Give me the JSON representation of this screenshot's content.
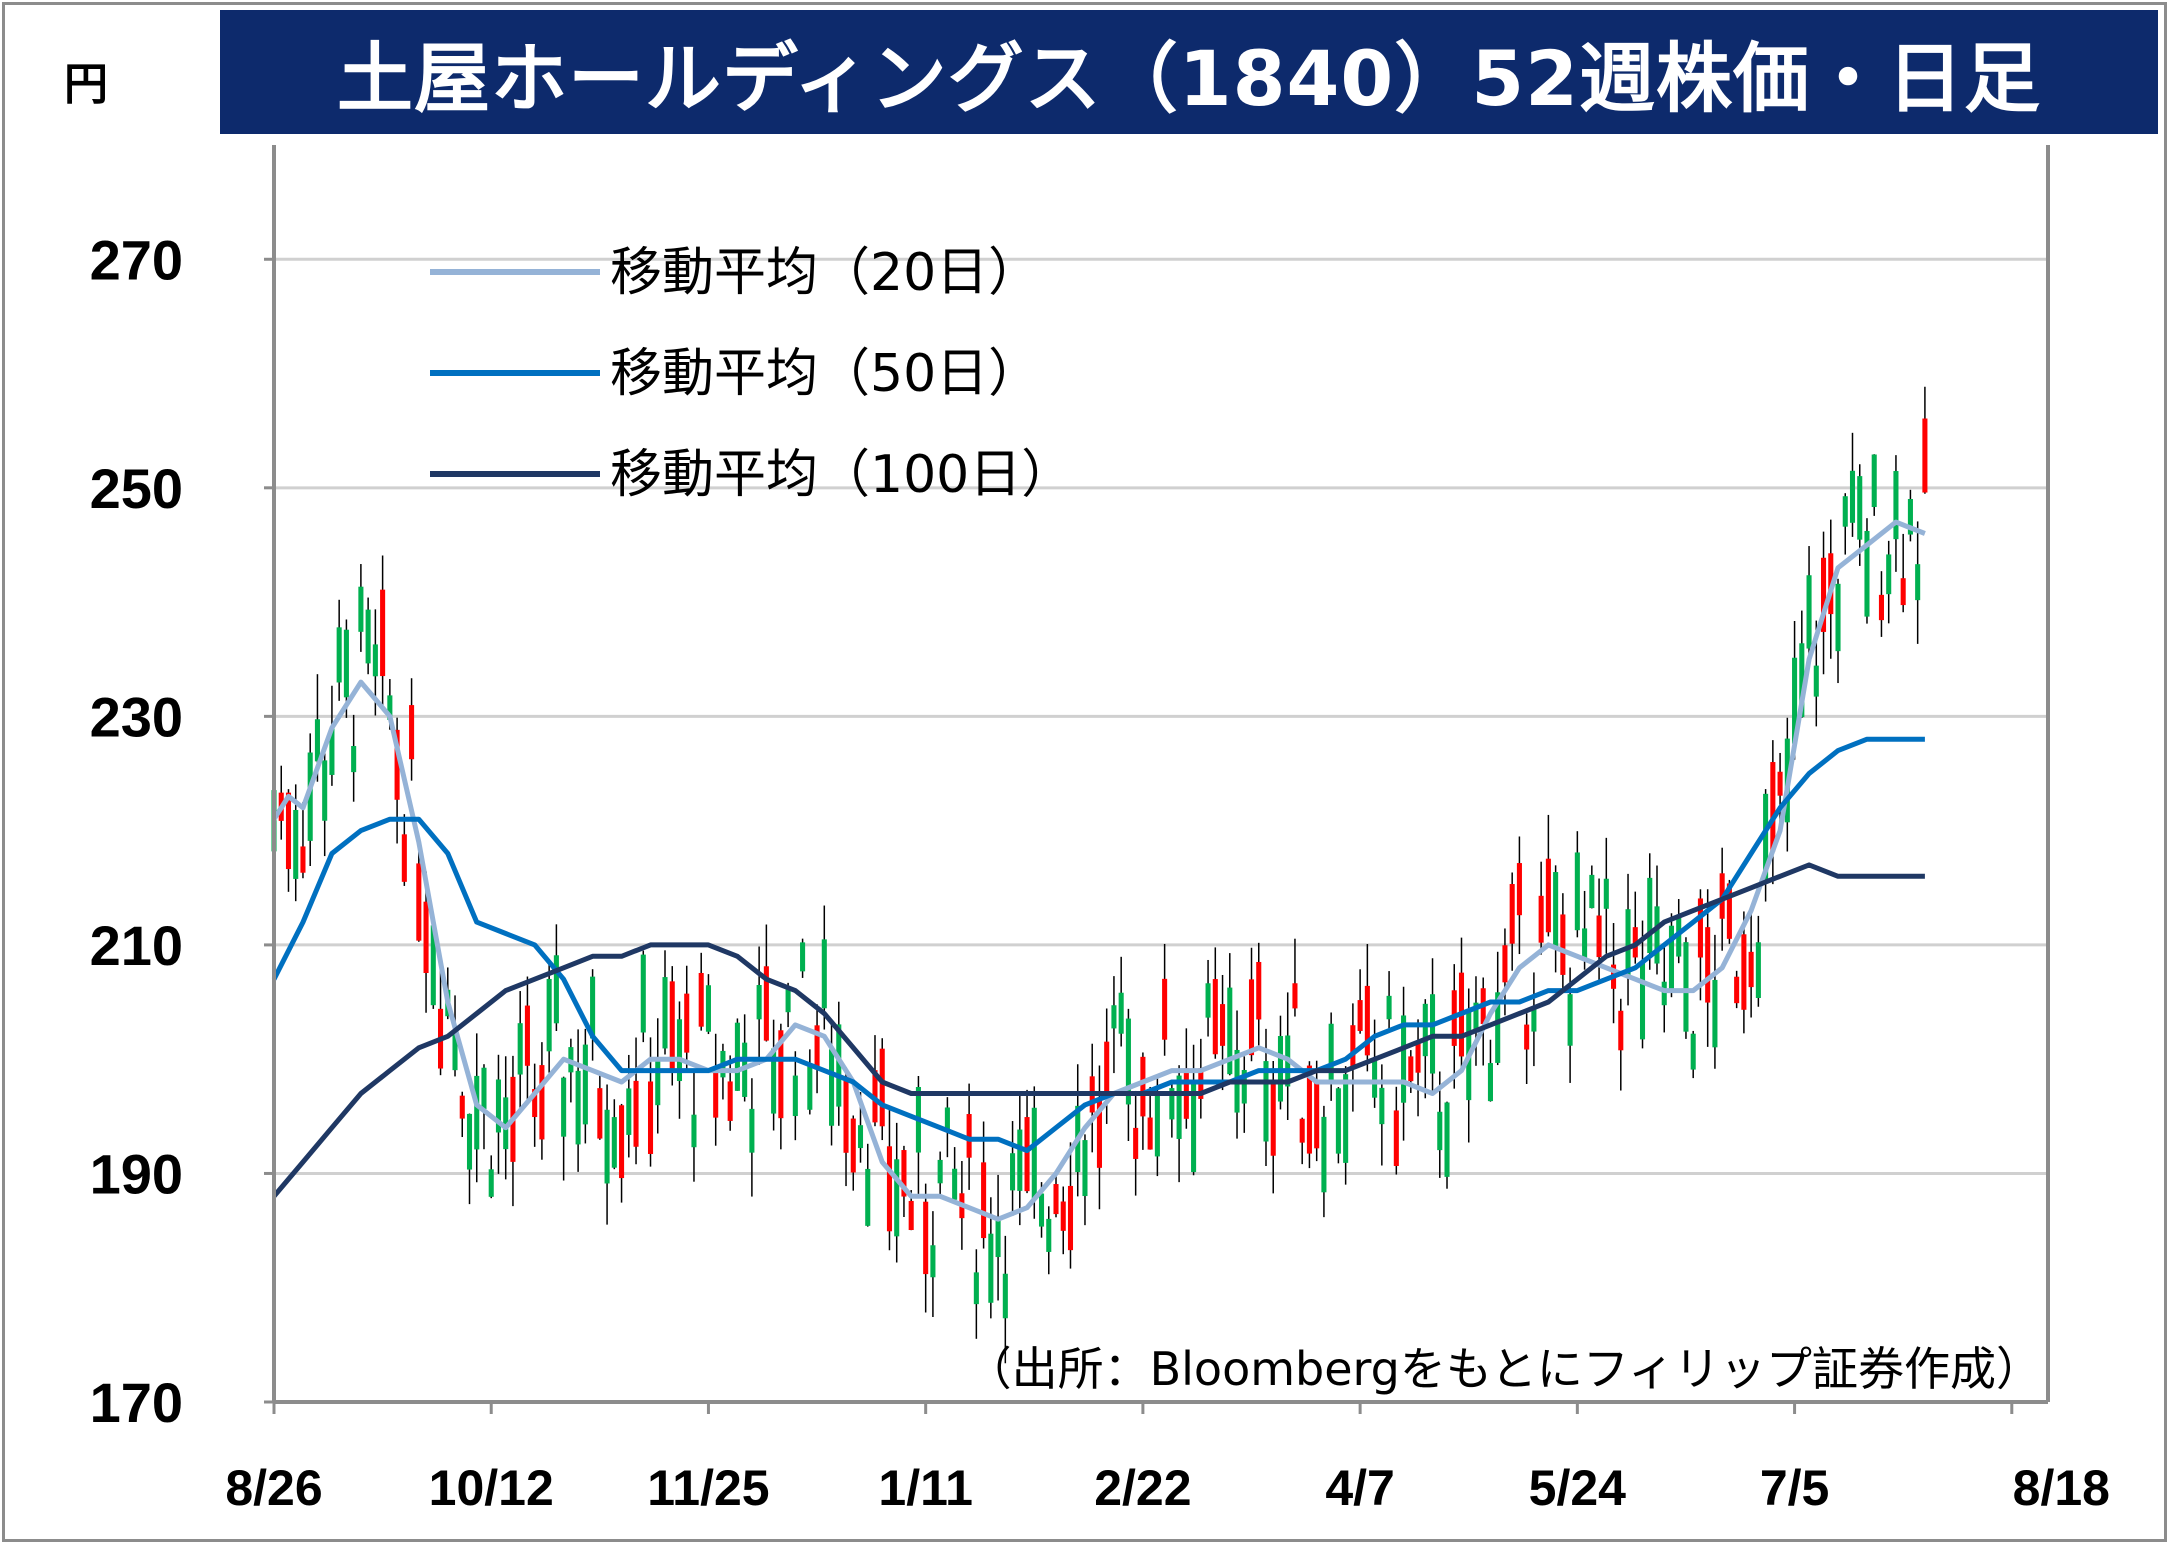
{
  "title": "土屋ホールディングス（1840）52週株価・日足",
  "unit": "円",
  "source": "（出所：Bloombergをもとにフィリップ証券作成）",
  "chart_data": {
    "type": "line",
    "ylim": [
      170,
      280
    ],
    "yticks": [
      170,
      190,
      210,
      230,
      250,
      270
    ],
    "ytick_labels": [
      "170",
      "190",
      "210",
      "230",
      "250",
      "270"
    ],
    "xlim": [
      0,
      245
    ],
    "xtick_positions": [
      0,
      30,
      60,
      90,
      120,
      150,
      180,
      210,
      240
    ],
    "xtick_labels": [
      "8/26",
      "10/12",
      "11/25",
      "1/11",
      "2/22",
      "4/7",
      "5/24",
      "7/5",
      "8/18"
    ],
    "grid": true,
    "legend": "top-left",
    "up_color": "#ff0000",
    "down_color": "#00b050",
    "series": [
      {
        "name": "移動平均（20日）",
        "color": "#95b3d7",
        "points": [
          [
            0,
            221
          ],
          [
            2,
            223
          ],
          [
            4,
            222
          ],
          [
            8,
            229
          ],
          [
            12,
            233
          ],
          [
            16,
            230
          ],
          [
            20,
            219
          ],
          [
            24,
            205
          ],
          [
            28,
            196
          ],
          [
            32,
            194
          ],
          [
            36,
            197
          ],
          [
            40,
            200
          ],
          [
            44,
            199
          ],
          [
            48,
            198
          ],
          [
            52,
            200
          ],
          [
            56,
            200
          ],
          [
            60,
            199
          ],
          [
            64,
            199
          ],
          [
            68,
            200
          ],
          [
            72,
            203
          ],
          [
            76,
            202
          ],
          [
            80,
            198
          ],
          [
            84,
            191
          ],
          [
            88,
            188
          ],
          [
            92,
            188
          ],
          [
            96,
            187
          ],
          [
            100,
            186
          ],
          [
            104,
            187
          ],
          [
            108,
            190
          ],
          [
            112,
            194
          ],
          [
            116,
            197
          ],
          [
            120,
            198
          ],
          [
            124,
            199
          ],
          [
            128,
            199
          ],
          [
            132,
            200
          ],
          [
            136,
            201
          ],
          [
            140,
            200
          ],
          [
            144,
            198
          ],
          [
            148,
            198
          ],
          [
            152,
            198
          ],
          [
            156,
            198
          ],
          [
            160,
            197
          ],
          [
            164,
            199
          ],
          [
            168,
            204
          ],
          [
            172,
            208
          ],
          [
            176,
            210
          ],
          [
            180,
            209
          ],
          [
            184,
            208
          ],
          [
            188,
            207
          ],
          [
            192,
            206
          ],
          [
            196,
            206
          ],
          [
            200,
            208
          ],
          [
            204,
            213
          ],
          [
            208,
            220
          ],
          [
            212,
            235
          ],
          [
            216,
            243
          ],
          [
            220,
            245
          ],
          [
            224,
            247
          ],
          [
            228,
            246
          ]
        ]
      },
      {
        "name": "移動平均（50日）",
        "color": "#0070c0",
        "points": [
          [
            0,
            207
          ],
          [
            4,
            212
          ],
          [
            8,
            218
          ],
          [
            12,
            220
          ],
          [
            16,
            221
          ],
          [
            20,
            221
          ],
          [
            24,
            218
          ],
          [
            28,
            212
          ],
          [
            32,
            211
          ],
          [
            36,
            210
          ],
          [
            40,
            207
          ],
          [
            44,
            202
          ],
          [
            48,
            199
          ],
          [
            52,
            199
          ],
          [
            56,
            199
          ],
          [
            60,
            199
          ],
          [
            64,
            200
          ],
          [
            68,
            200
          ],
          [
            72,
            200
          ],
          [
            76,
            199
          ],
          [
            80,
            198
          ],
          [
            84,
            196
          ],
          [
            88,
            195
          ],
          [
            92,
            194
          ],
          [
            96,
            193
          ],
          [
            100,
            193
          ],
          [
            104,
            192
          ],
          [
            108,
            194
          ],
          [
            112,
            196
          ],
          [
            116,
            197
          ],
          [
            120,
            197
          ],
          [
            124,
            198
          ],
          [
            128,
            198
          ],
          [
            132,
            198
          ],
          [
            136,
            199
          ],
          [
            140,
            199
          ],
          [
            144,
            199
          ],
          [
            148,
            200
          ],
          [
            152,
            202
          ],
          [
            156,
            203
          ],
          [
            160,
            203
          ],
          [
            164,
            204
          ],
          [
            168,
            205
          ],
          [
            172,
            205
          ],
          [
            176,
            206
          ],
          [
            180,
            206
          ],
          [
            184,
            207
          ],
          [
            188,
            208
          ],
          [
            192,
            210
          ],
          [
            196,
            212
          ],
          [
            200,
            214
          ],
          [
            204,
            218
          ],
          [
            208,
            222
          ],
          [
            212,
            225
          ],
          [
            216,
            227
          ],
          [
            220,
            228
          ],
          [
            224,
            228
          ],
          [
            228,
            228
          ]
        ]
      },
      {
        "name": "移動平均（100日）",
        "color": "#1f3864",
        "points": [
          [
            0,
            188
          ],
          [
            4,
            191
          ],
          [
            8,
            194
          ],
          [
            12,
            197
          ],
          [
            16,
            199
          ],
          [
            20,
            201
          ],
          [
            24,
            202
          ],
          [
            28,
            204
          ],
          [
            32,
            206
          ],
          [
            36,
            207
          ],
          [
            40,
            208
          ],
          [
            44,
            209
          ],
          [
            48,
            209
          ],
          [
            52,
            210
          ],
          [
            56,
            210
          ],
          [
            60,
            210
          ],
          [
            64,
            209
          ],
          [
            68,
            207
          ],
          [
            72,
            206
          ],
          [
            76,
            204
          ],
          [
            80,
            201
          ],
          [
            84,
            198
          ],
          [
            88,
            197
          ],
          [
            92,
            197
          ],
          [
            96,
            197
          ],
          [
            100,
            197
          ],
          [
            104,
            197
          ],
          [
            108,
            197
          ],
          [
            112,
            197
          ],
          [
            116,
            197
          ],
          [
            120,
            197
          ],
          [
            124,
            197
          ],
          [
            128,
            197
          ],
          [
            132,
            198
          ],
          [
            136,
            198
          ],
          [
            140,
            198
          ],
          [
            144,
            199
          ],
          [
            148,
            199
          ],
          [
            152,
            200
          ],
          [
            156,
            201
          ],
          [
            160,
            202
          ],
          [
            164,
            202
          ],
          [
            168,
            203
          ],
          [
            172,
            204
          ],
          [
            176,
            205
          ],
          [
            180,
            207
          ],
          [
            184,
            209
          ],
          [
            188,
            210
          ],
          [
            192,
            212
          ],
          [
            196,
            213
          ],
          [
            200,
            214
          ],
          [
            204,
            215
          ],
          [
            208,
            216
          ],
          [
            212,
            217
          ],
          [
            216,
            216
          ],
          [
            220,
            216
          ],
          [
            224,
            216
          ],
          [
            228,
            216
          ]
        ]
      }
    ]
  }
}
